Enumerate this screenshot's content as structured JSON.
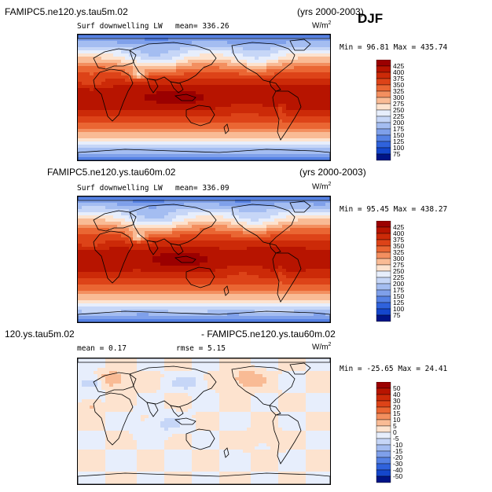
{
  "season": "DJF",
  "panels": [
    {
      "case": "FAMIPC5.ne120.ys.tau5m.02",
      "years": "(yrs 2000-2003)",
      "variable": "Surf downwelling LW",
      "stat_text": "mean= 336.26",
      "units": "W/m",
      "units_exp": "2",
      "minmax": "Min =  96.81 Max = 435.74",
      "field": "abs"
    },
    {
      "case": "FAMIPC5.ne120.ys.tau60m.02",
      "years": "(yrs 2000-2003)",
      "variable": "Surf downwelling LW",
      "stat_text": "mean= 336.09",
      "units": "W/m",
      "units_exp": "2",
      "minmax": "Min =  95.45 Max = 438.27",
      "field": "abs2"
    },
    {
      "case_left": "120.ys.tau5m.02",
      "case_right": "- FAMIPC5.ne120.ys.tau60m.02",
      "mean_text": "mean =   0.17",
      "rmse_text": "rmse =   5.15",
      "units": "W/m",
      "units_exp": "2",
      "minmax": "Min = -25.65 Max =  24.41",
      "field": "diff"
    }
  ],
  "chart_data": [
    {
      "type": "heatmap",
      "title": "FAMIPC5.ne120.ys.tau5m.02 (yrs 2000-2003) DJF",
      "variable": "Surf downwelling LW",
      "mean": 336.26,
      "min": 96.81,
      "max": 435.74,
      "units": "W/m2",
      "levels": [
        425,
        400,
        375,
        350,
        325,
        300,
        275,
        250,
        225,
        200,
        175,
        150,
        125,
        100,
        75
      ]
    },
    {
      "type": "heatmap",
      "title": "FAMIPC5.ne120.ys.tau60m.02 (yrs 2000-2003) DJF",
      "variable": "Surf downwelling LW",
      "mean": 336.09,
      "min": 95.45,
      "max": 438.27,
      "units": "W/m2",
      "levels": [
        425,
        400,
        375,
        350,
        325,
        300,
        275,
        250,
        225,
        200,
        175,
        150,
        125,
        100,
        75
      ]
    },
    {
      "type": "heatmap",
      "title": "120.ys.tau5m.02 - FAMIPC5.ne120.ys.tau60m.02",
      "mean": 0.17,
      "rmse": 5.15,
      "min": -25.65,
      "max": 24.41,
      "units": "W/m2",
      "levels": [
        50,
        40,
        30,
        20,
        15,
        10,
        5,
        0,
        -5,
        -10,
        -15,
        -20,
        -30,
        -40,
        -50
      ]
    }
  ],
  "colors": {
    "abs": [
      "#9b0000",
      "#b71400",
      "#cc2a08",
      "#dd4318",
      "#ea6633",
      "#f38f5f",
      "#f9bb95",
      "#fde3cf",
      "#e7eefc",
      "#c6d6f7",
      "#a4bdf1",
      "#7fa0ea",
      "#5581e4",
      "#2f62dc",
      "#1446cc",
      "#001487"
    ],
    "diff": [
      "#9b0000",
      "#b71400",
      "#cc2a08",
      "#dd4318",
      "#ea6633",
      "#f38f5f",
      "#f9bb95",
      "#fde3cf",
      "#e7eefc",
      "#c6d6f7",
      "#a4bdf1",
      "#7fa0ea",
      "#5581e4",
      "#2f62dc",
      "#1446cc",
      "#001487"
    ]
  }
}
